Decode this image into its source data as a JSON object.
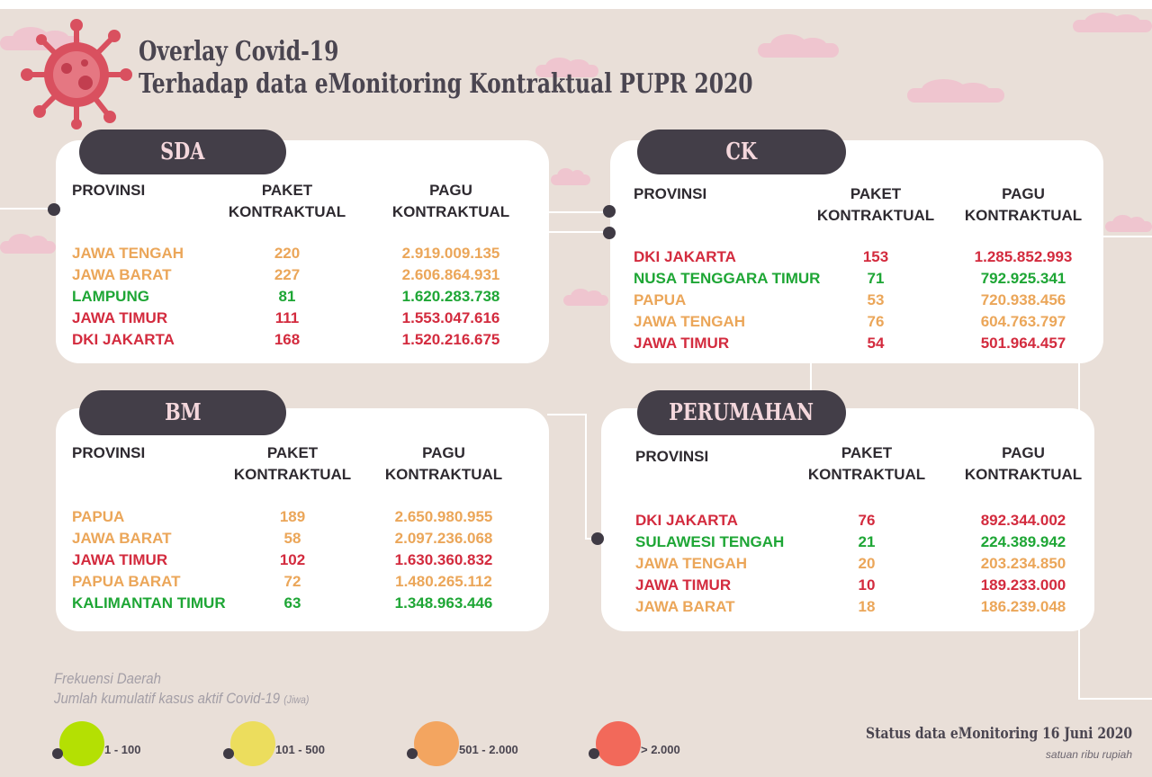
{
  "title_line1": "Overlay Covid-19",
  "title_line2": "Terhadap data eMonitoring Kontraktual PUPR 2020",
  "colors": {
    "orange": "#eba659",
    "green": "#1ea635",
    "red": "#d32b3e",
    "tab": "#433e48",
    "legend_green": "#b4e003",
    "legend_yellow": "#ecdd5d",
    "legend_orange": "#f3a560",
    "legend_red": "#f2695a"
  },
  "headers": {
    "provinsi": "PROVINSI",
    "paket_1": "PAKET",
    "paket_2": "KONTRAKTUAL",
    "pagu_1": "PAGU",
    "pagu_2": "KONTRAKTUAL"
  },
  "panels": {
    "sda": {
      "label": "SDA",
      "rows": [
        {
          "provinsi": "JAWA TENGAH",
          "paket": "220",
          "pagu": "2.919.009.135",
          "color": "orange"
        },
        {
          "provinsi": "JAWA BARAT",
          "paket": "227",
          "pagu": "2.606.864.931",
          "color": "orange"
        },
        {
          "provinsi": "LAMPUNG",
          "paket": "81",
          "pagu": "1.620.283.738",
          "color": "green"
        },
        {
          "provinsi": "JAWA TIMUR",
          "paket": "111",
          "pagu": "1.553.047.616",
          "color": "red"
        },
        {
          "provinsi": "DKI JAKARTA",
          "paket": "168",
          "pagu": "1.520.216.675",
          "color": "red"
        }
      ]
    },
    "ck": {
      "label": "CK",
      "rows": [
        {
          "provinsi": "DKI JAKARTA",
          "paket": "153",
          "pagu": "1.285.852.993",
          "color": "red"
        },
        {
          "provinsi": "NUSA TENGGARA TIMUR",
          "paket": "71",
          "pagu": "792.925.341",
          "color": "green"
        },
        {
          "provinsi": "PAPUA",
          "paket": "53",
          "pagu": "720.938.456",
          "color": "orange"
        },
        {
          "provinsi": "JAWA TENGAH",
          "paket": "76",
          "pagu": "604.763.797",
          "color": "orange"
        },
        {
          "provinsi": "JAWA TIMUR",
          "paket": "54",
          "pagu": "501.964.457",
          "color": "red"
        }
      ]
    },
    "bm": {
      "label": "BM",
      "rows": [
        {
          "provinsi": "PAPUA",
          "paket": "189",
          "pagu": "2.650.980.955",
          "color": "orange"
        },
        {
          "provinsi": "JAWA BARAT",
          "paket": "58",
          "pagu": "2.097.236.068",
          "color": "orange"
        },
        {
          "provinsi": "JAWA TIMUR",
          "paket": "102",
          "pagu": "1.630.360.832",
          "color": "red"
        },
        {
          "provinsi": "PAPUA BARAT",
          "paket": "72",
          "pagu": "1.480.265.112",
          "color": "orange"
        },
        {
          "provinsi": "KALIMANTAN TIMUR",
          "paket": "63",
          "pagu": "1.348.963.446",
          "color": "green"
        }
      ]
    },
    "perumahan": {
      "label": "PERUMAHAN",
      "rows": [
        {
          "provinsi": "DKI JAKARTA",
          "paket": "76",
          "pagu": "892.344.002",
          "color": "red"
        },
        {
          "provinsi": "SULAWESI TENGAH",
          "paket": "21",
          "pagu": "224.389.942",
          "color": "green"
        },
        {
          "provinsi": "JAWA TENGAH",
          "paket": "20",
          "pagu": "203.234.850",
          "color": "orange"
        },
        {
          "provinsi": "JAWA TIMUR",
          "paket": "10",
          "pagu": "189.233.000",
          "color": "red"
        },
        {
          "provinsi": "JAWA BARAT",
          "paket": "18",
          "pagu": "186.239.048",
          "color": "orange"
        }
      ]
    }
  },
  "legend": {
    "title_line1": "Frekuensi Daerah",
    "title_line2": "Jumlah kumulatif kasus aktif Covid-19",
    "title_unit": "(Jiwa)",
    "items": [
      {
        "label": "1 - 100",
        "color": "legend_green"
      },
      {
        "label": "101 - 500",
        "color": "legend_yellow"
      },
      {
        "label": "501 - 2.000",
        "color": "legend_orange"
      },
      {
        "label": "> 2.000",
        "color": "legend_red"
      }
    ]
  },
  "status": "Status data eMonitoring 16 Juni 2020",
  "satuan": "satuan ribu rupiah"
}
